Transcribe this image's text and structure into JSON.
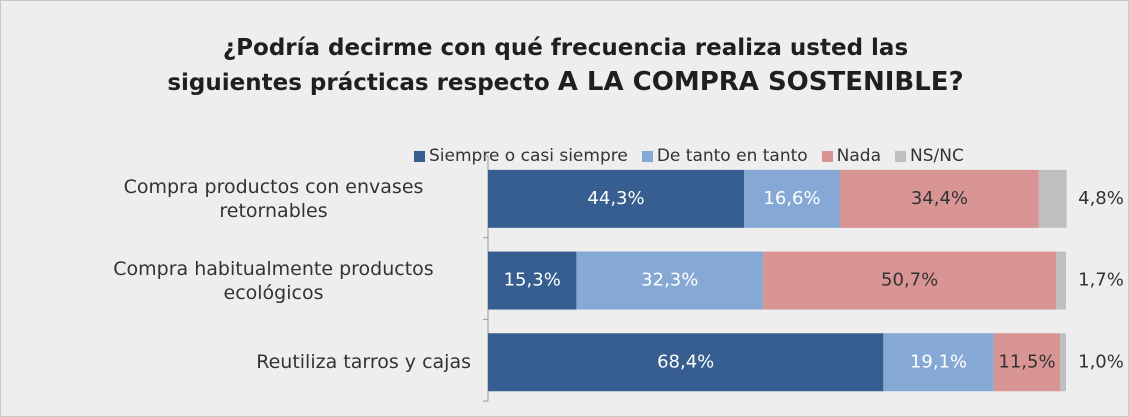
{
  "chart_data": {
    "type": "stacked-bar-horizontal",
    "title": {
      "line1": "¿Podría decirme con qué frecuencia realiza usted las",
      "line2": "siguientes prácticas respecto",
      "line2_emphasis": "A LA COMPRA SOSTENIBLE?"
    },
    "categories": [
      "Compra productos con envases retornables",
      "Compra habitualmente productos ecológicos",
      "Reutiliza tarros y cajas"
    ],
    "series": [
      {
        "name": "Siempre o casi siempre",
        "color": "#375e91",
        "values": [
          44.3,
          15.3,
          68.4
        ],
        "value_labels": [
          "44,3%",
          "15,3%",
          "68,4%"
        ]
      },
      {
        "name": "De tanto en tanto",
        "color": "#86a8d4",
        "values": [
          16.6,
          32.3,
          19.1
        ],
        "value_labels": [
          "16,6%",
          "32,3%",
          "19,1%"
        ]
      },
      {
        "name": "Nada",
        "color": "#d99594",
        "values": [
          34.4,
          50.7,
          11.5
        ],
        "value_labels": [
          "34,4%",
          "50,7%",
          "11,5%"
        ]
      },
      {
        "name": "NS/NC",
        "color": "#bfbfbf",
        "values": [
          4.8,
          1.7,
          1.0
        ],
        "value_labels": [
          "4,8%",
          "1,7%",
          "1,0%"
        ]
      }
    ],
    "xlim": [
      0,
      100
    ]
  }
}
